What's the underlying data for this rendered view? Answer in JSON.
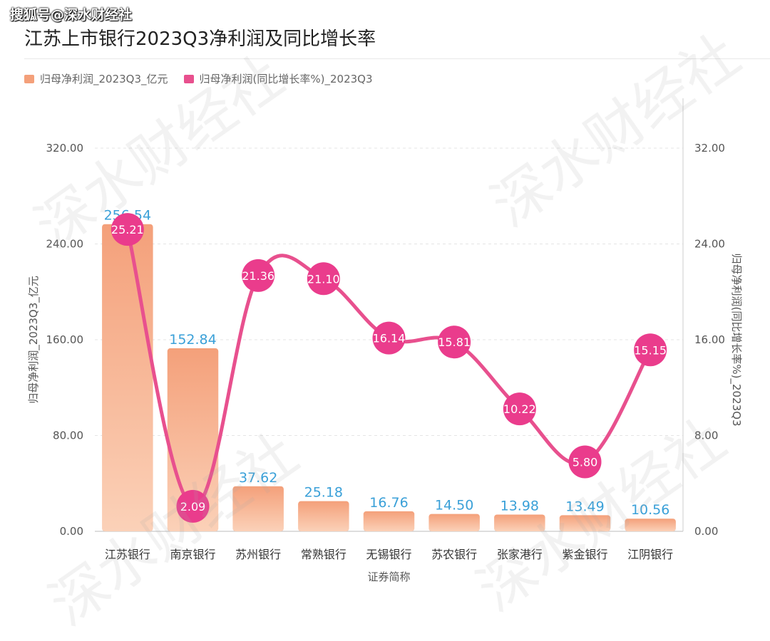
{
  "header": {
    "source": "搜狐号@深水财经社",
    "title": "江苏上市银行2023Q3净利润及同比增长率"
  },
  "watermark_text": "深水财经社",
  "colors": {
    "bar": "#f4a07a",
    "bar_light": "#fbd1b8",
    "line": "#e8508e",
    "marker": "#ea3c8c",
    "bar_label": "#3aa0d8",
    "axis_text": "#555555",
    "grid": "#e4e4e4"
  },
  "chart_data": {
    "type": "bar",
    "title": "江苏上市银行2023Q3净利润及同比增长率",
    "xlabel": "证券简称",
    "ylabel_left": "归母净利润_2023Q3_亿元",
    "ylabel_right": "归母净利润(同比增长率%)_2023Q3",
    "ylim_left": [
      0,
      320
    ],
    "ylim_right": [
      0,
      32
    ],
    "yticks_left": [
      "0.00",
      "80.00",
      "160.00",
      "240.00",
      "320.00"
    ],
    "yticks_right": [
      "0.00",
      "8.00",
      "16.00",
      "24.00",
      "32.00"
    ],
    "categories": [
      "江苏银行",
      "南京银行",
      "苏州银行",
      "常熟银行",
      "无锡银行",
      "苏农银行",
      "张家港行",
      "紫金银行",
      "江阴银行"
    ],
    "series": [
      {
        "name": "归母净利润_2023Q3_亿元",
        "type": "bar",
        "axis": "left",
        "values": [
          256.54,
          152.84,
          37.62,
          25.18,
          16.76,
          14.5,
          13.98,
          13.49,
          10.56
        ],
        "labels": [
          "256.54",
          "152.84",
          "37.62",
          "25.18",
          "16.76",
          "14.50",
          "13.98",
          "13.49",
          "10.56"
        ]
      },
      {
        "name": "归母净利润(同比增长率%)_2023Q3",
        "type": "line",
        "axis": "right",
        "values": [
          25.21,
          2.09,
          21.36,
          21.1,
          16.14,
          15.81,
          10.22,
          5.8,
          15.15
        ],
        "labels": [
          "25.21",
          "2.09",
          "21.36",
          "21.10",
          "16.14",
          "15.81",
          "10.22",
          "5.80",
          "15.15"
        ]
      }
    ],
    "grid": true,
    "legend_position": "top-left"
  }
}
